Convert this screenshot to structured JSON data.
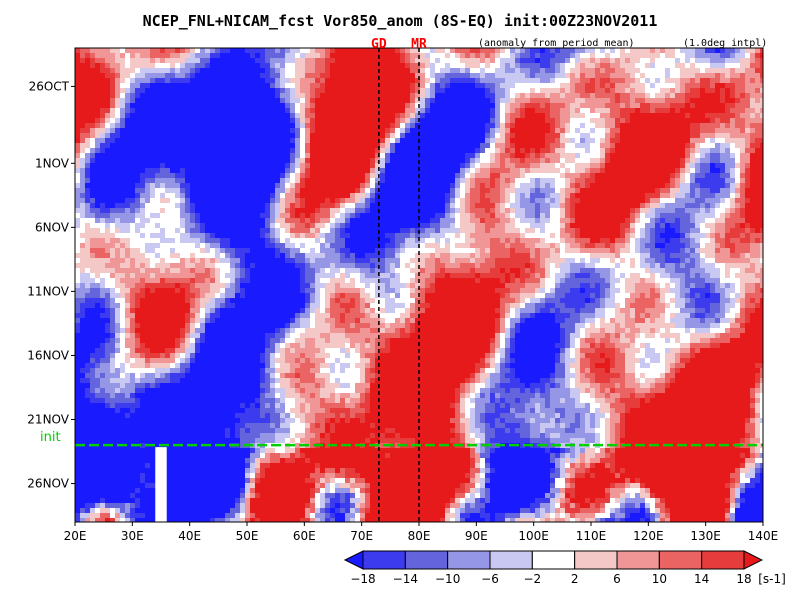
{
  "chart_data": {
    "type": "heatmap",
    "title": "NCEP_FNL+NICAM_fcst Vor850_anom (8S-EQ) init:00Z23NOV2011",
    "subtitle_left": "(anomaly from period mean)",
    "subtitle_right": "(1.0deg intpl)",
    "x_ticks": [
      "20E",
      "30E",
      "40E",
      "50E",
      "60E",
      "70E",
      "80E",
      "90E",
      "100E",
      "110E",
      "120E",
      "130E",
      "140E"
    ],
    "x_range": [
      20,
      140
    ],
    "y_ticks": [
      "26OCT",
      "1NOV",
      "6NOV",
      "11NOV",
      "16NOV",
      "21NOV",
      "26NOV"
    ],
    "y_tick_days": [
      0,
      6,
      11,
      16,
      21,
      26,
      31
    ],
    "y_range_days": [
      -3,
      34
    ],
    "init_label": "init",
    "init_day": 28,
    "markers": [
      {
        "label": "GD",
        "lon": 73
      },
      {
        "label": "MR",
        "lon": 80
      }
    ],
    "gap_lon_range": [
      34,
      36
    ],
    "gap_day_start": 28,
    "colorbar": {
      "levels": [
        "−18",
        "−14",
        "−10",
        "−6",
        "−2",
        "2",
        "6",
        "10",
        "14",
        "18"
      ],
      "unit": "[s-1]",
      "colors": [
        "#1a1aff",
        "#3c3cee",
        "#6464dd",
        "#9696e6",
        "#c8c8f2",
        "#ffffff",
        "#f5c8c8",
        "#f09696",
        "#eb6464",
        "#e63c3c",
        "#e61a1a"
      ]
    }
  }
}
